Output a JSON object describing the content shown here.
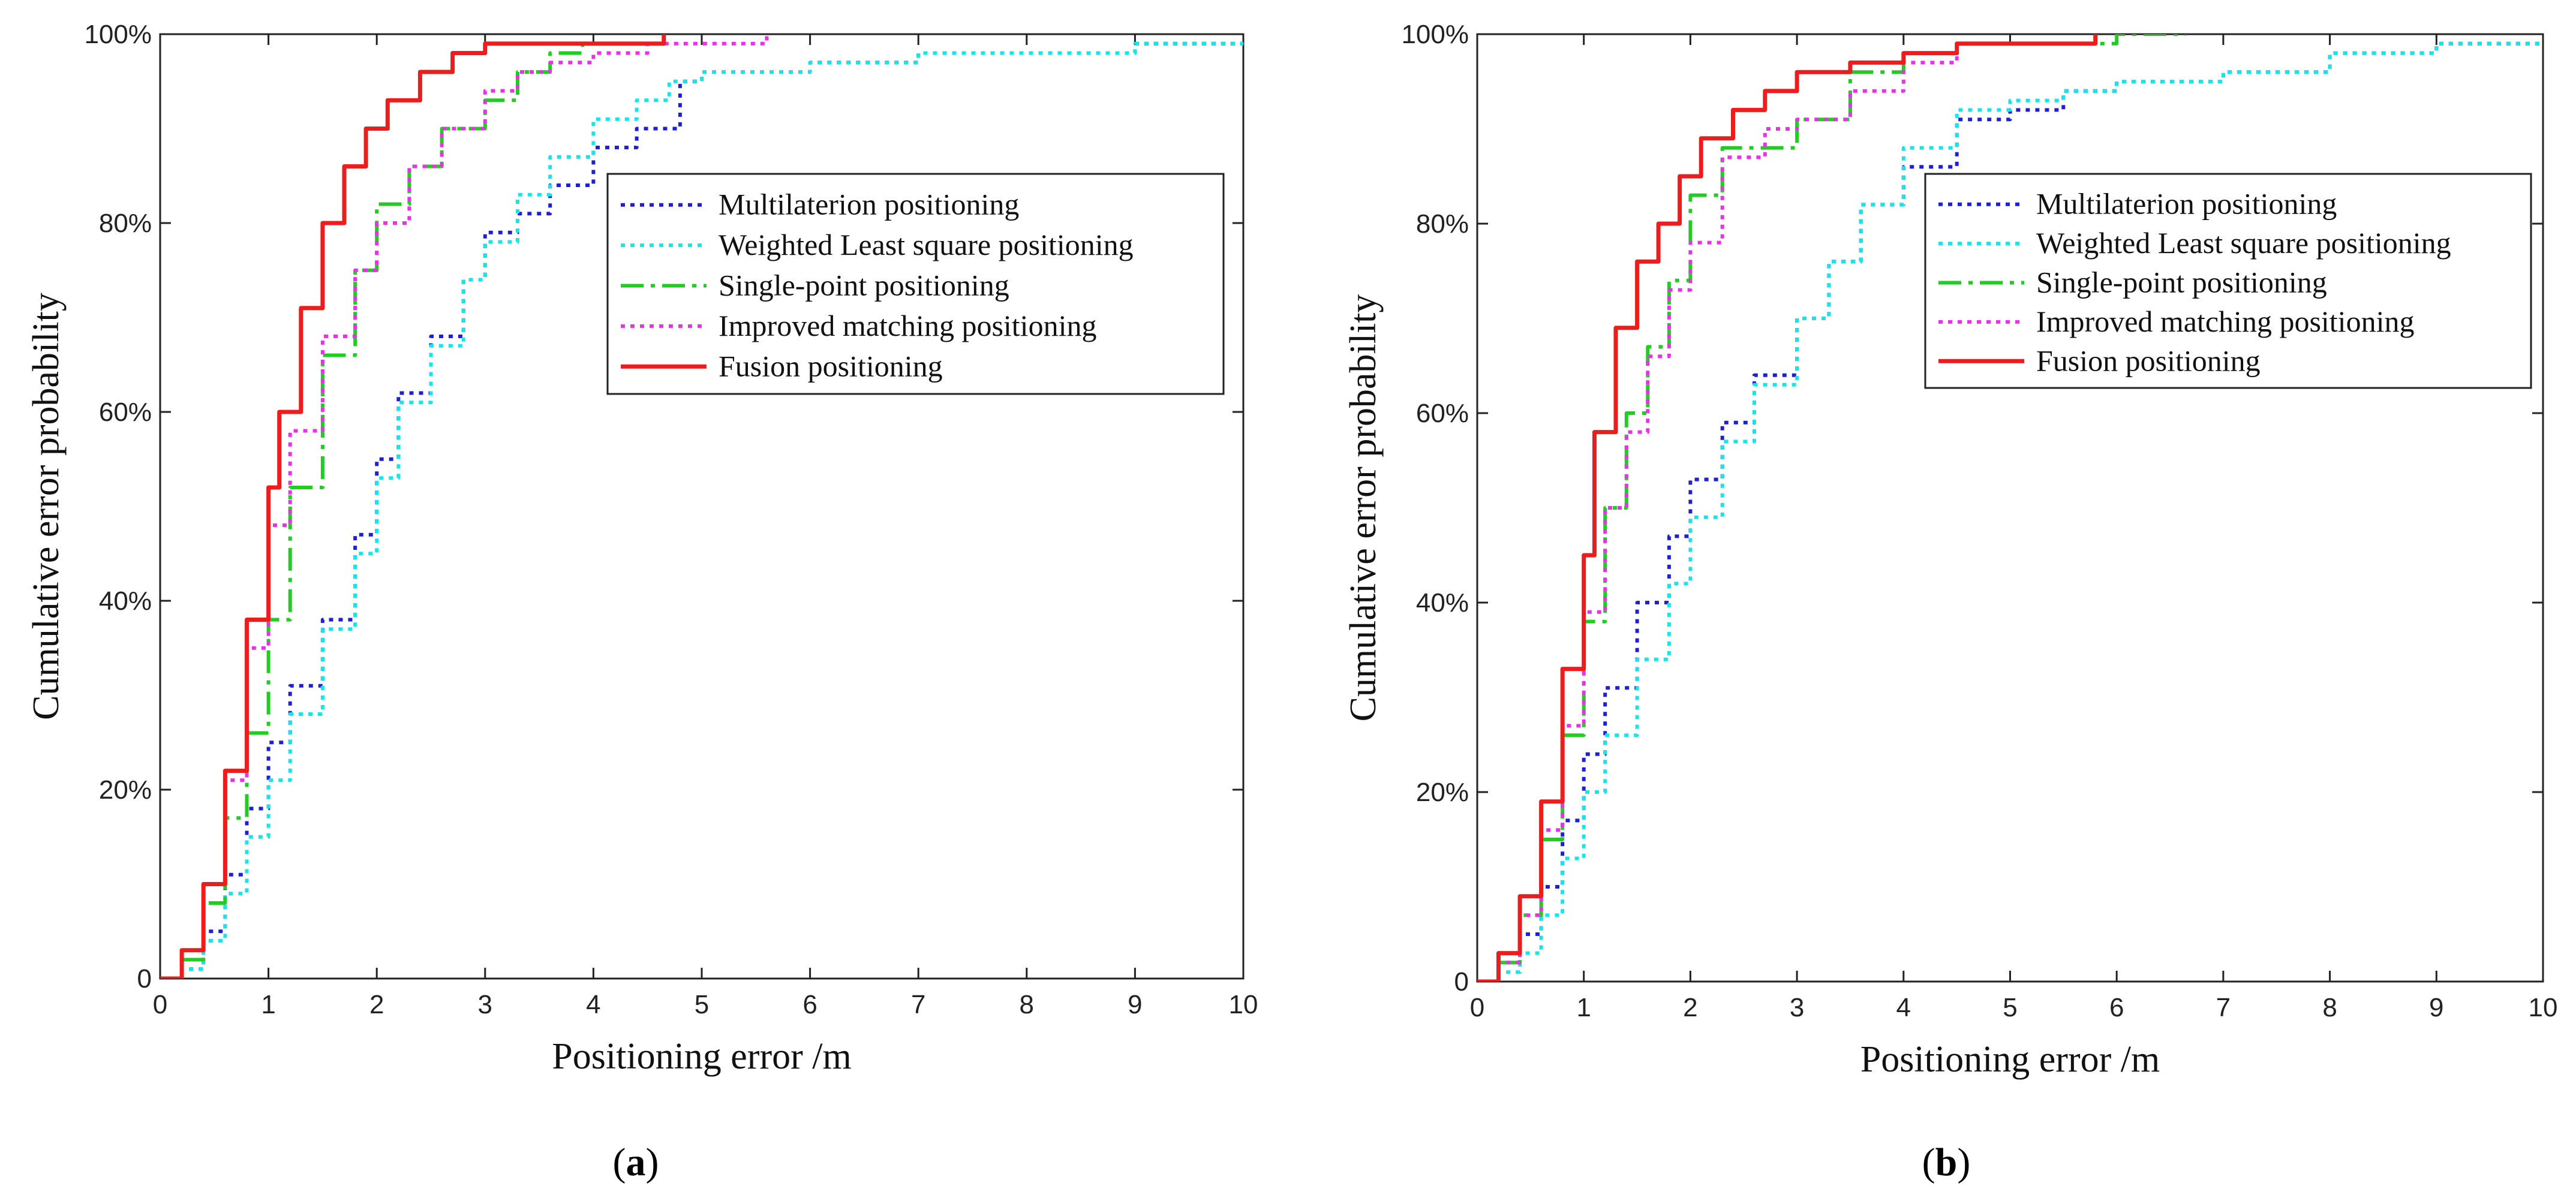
{
  "chart_data": [
    {
      "type": "line",
      "panel_label": "a",
      "title": "",
      "xlabel": "Positioning error /m",
      "ylabel": "Cumulative error probability",
      "xlim": [
        0,
        10
      ],
      "ylim": [
        0,
        100
      ],
      "xticks": [
        "0",
        "1",
        "2",
        "3",
        "4",
        "5",
        "6",
        "7",
        "8",
        "9",
        "10"
      ],
      "yticks": [
        "0",
        "20%",
        "40%",
        "60%",
        "80%",
        "100%"
      ],
      "grid": false,
      "legend_position": "upper-middle-right",
      "series": [
        {
          "name": "Multilaterion positioning",
          "color": "#1f1fd6",
          "dash": "dot",
          "x": [
            0,
            0.2,
            0.4,
            0.6,
            0.8,
            1.0,
            1.2,
            1.5,
            1.8,
            2.0,
            2.2,
            2.5,
            2.8,
            3.0,
            3.3,
            3.6,
            4.0,
            4.4,
            4.8,
            5.0,
            5.5,
            6,
            7,
            8,
            9,
            10
          ],
          "y": [
            0,
            1,
            5,
            11,
            18,
            25,
            31,
            38,
            47,
            55,
            62,
            68,
            74,
            79,
            81,
            84,
            88,
            90,
            95,
            96,
            96,
            97,
            98,
            98,
            99,
            99
          ]
        },
        {
          "name": "Weighted Least square positioning",
          "color": "#17e5ea",
          "dash": "dot",
          "x": [
            0,
            0.2,
            0.4,
            0.6,
            0.8,
            1.0,
            1.2,
            1.5,
            1.8,
            2.0,
            2.2,
            2.5,
            2.8,
            3.0,
            3.3,
            3.6,
            4.0,
            4.4,
            4.7,
            5.0,
            5.5,
            6,
            7,
            8,
            9,
            10
          ],
          "y": [
            0,
            1,
            4,
            9,
            15,
            21,
            28,
            37,
            45,
            53,
            61,
            67,
            74,
            78,
            83,
            87,
            91,
            93,
            95,
            96,
            96,
            97,
            98,
            98,
            99,
            99
          ]
        },
        {
          "name": "Single-point positioning",
          "color": "#22cc22",
          "dash": "dashdot",
          "x": [
            0,
            0.2,
            0.4,
            0.6,
            0.8,
            1.0,
            1.2,
            1.5,
            1.8,
            2.0,
            2.3,
            2.6,
            3.0,
            3.3,
            3.6,
            3.9
          ],
          "y": [
            0,
            2,
            8,
            17,
            26,
            38,
            52,
            66,
            75,
            82,
            86,
            90,
            93,
            96,
            98,
            99
          ]
        },
        {
          "name": "Improved matching positioning",
          "color": "#e633e6",
          "dash": "dot",
          "x": [
            0,
            0.2,
            0.4,
            0.6,
            0.8,
            1.0,
            1.2,
            1.5,
            1.8,
            2.0,
            2.3,
            2.6,
            3.0,
            3.3,
            3.6,
            4.0,
            4.5,
            5.0,
            5.6
          ],
          "y": [
            0,
            3,
            10,
            21,
            35,
            48,
            58,
            68,
            75,
            80,
            86,
            90,
            94,
            96,
            97,
            98,
            99,
            99,
            100
          ]
        },
        {
          "name": "Fusion positioning",
          "color": "#ee1c1c",
          "dash": "solid",
          "x": [
            0,
            0.2,
            0.4,
            0.6,
            0.8,
            1.0,
            1.1,
            1.3,
            1.5,
            1.7,
            1.9,
            2.1,
            2.4,
            2.7,
            3.0,
            3.5,
            4.0,
            4.65
          ],
          "y": [
            0,
            3,
            10,
            22,
            38,
            52,
            60,
            71,
            80,
            86,
            90,
            93,
            96,
            98,
            99,
            99,
            99,
            100
          ]
        }
      ]
    },
    {
      "type": "line",
      "panel_label": "b",
      "title": "",
      "xlabel": "Positioning error /m",
      "ylabel": "Cumulative error probability",
      "xlim": [
        0,
        10
      ],
      "ylim": [
        0,
        100
      ],
      "xticks": [
        "0",
        "1",
        "2",
        "3",
        "4",
        "5",
        "6",
        "7",
        "8",
        "9",
        "10"
      ],
      "yticks": [
        "0",
        "20%",
        "40%",
        "60%",
        "80%",
        "100%"
      ],
      "grid": false,
      "legend_position": "upper-middle-right",
      "series": [
        {
          "name": "Multilaterion positioning",
          "color": "#1f1fd6",
          "dash": "dot",
          "x": [
            0,
            0.2,
            0.4,
            0.6,
            0.8,
            1.0,
            1.2,
            1.5,
            1.8,
            2.0,
            2.3,
            2.6,
            3.0,
            3.3,
            3.6,
            4.0,
            4.5,
            5.0,
            5.5,
            6,
            7,
            8,
            9,
            10
          ],
          "y": [
            0,
            2,
            5,
            10,
            17,
            24,
            31,
            40,
            47,
            53,
            59,
            64,
            70,
            76,
            82,
            86,
            91,
            92,
            94,
            95,
            96,
            98,
            99,
            99
          ]
        },
        {
          "name": "Weighted Least square positioning",
          "color": "#17e5ea",
          "dash": "dot",
          "x": [
            0,
            0.2,
            0.4,
            0.6,
            0.8,
            1.0,
            1.2,
            1.5,
            1.8,
            2.0,
            2.3,
            2.6,
            3.0,
            3.3,
            3.6,
            4.0,
            4.5,
            5.0,
            5.5,
            6,
            7,
            8,
            9,
            10
          ],
          "y": [
            0,
            1,
            3,
            7,
            13,
            20,
            26,
            34,
            42,
            49,
            57,
            63,
            70,
            76,
            82,
            88,
            92,
            93,
            94,
            95,
            96,
            98,
            99,
            99
          ]
        },
        {
          "name": "Single-point positioning",
          "color": "#22cc22",
          "dash": "dashdot",
          "x": [
            0,
            0.2,
            0.4,
            0.6,
            0.8,
            1.0,
            1.2,
            1.4,
            1.6,
            1.8,
            2.0,
            2.3,
            2.7,
            3.0,
            3.5,
            4.0,
            4.5,
            5.0,
            5.5,
            6.0,
            6.65
          ],
          "y": [
            0,
            2,
            7,
            15,
            26,
            38,
            50,
            60,
            67,
            74,
            83,
            88,
            88,
            91,
            96,
            98,
            99,
            99,
            99,
            100,
            100
          ]
        },
        {
          "name": "Improved matching positioning",
          "color": "#e633e6",
          "dash": "dot",
          "x": [
            0,
            0.2,
            0.4,
            0.6,
            0.8,
            1.0,
            1.2,
            1.4,
            1.6,
            1.8,
            2.0,
            2.3,
            2.7,
            3.0,
            3.5,
            4.0,
            4.5,
            5.0
          ],
          "y": [
            0,
            2,
            7,
            16,
            27,
            39,
            50,
            58,
            66,
            73,
            78,
            87,
            90,
            91,
            94,
            97,
            99,
            99
          ]
        },
        {
          "name": "Fusion positioning",
          "color": "#ee1c1c",
          "dash": "solid",
          "x": [
            0,
            0.2,
            0.4,
            0.6,
            0.8,
            1.0,
            1.1,
            1.3,
            1.5,
            1.7,
            1.9,
            2.1,
            2.4,
            2.7,
            3.0,
            3.5,
            4.0,
            4.5,
            5.0,
            5.8
          ],
          "y": [
            0,
            3,
            9,
            19,
            33,
            45,
            58,
            69,
            76,
            80,
            85,
            89,
            92,
            94,
            96,
            97,
            98,
            99,
            99,
            100
          ]
        }
      ]
    }
  ]
}
